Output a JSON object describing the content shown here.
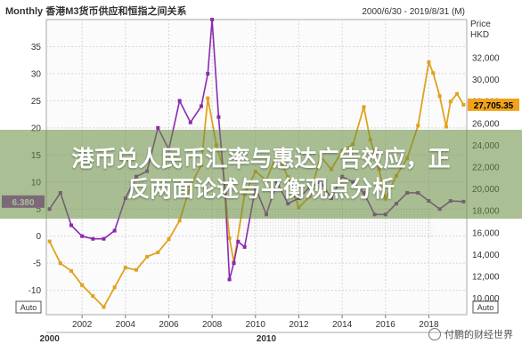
{
  "chart_data": {
    "type": "line",
    "title": "Monthly 香港M3货币供应和恒指之间关系",
    "date_range": "2000/6/30 - 2019/8/31 (M)",
    "left_axis": {
      "ticks": [
        35,
        30,
        25,
        20,
        15,
        10,
        5,
        0,
        -5,
        -10
      ],
      "ylim": [
        -14.5,
        40
      ],
      "current_label": "6.380"
    },
    "right_axis": {
      "unit_top": "Price",
      "unit_bottom": "HKD",
      "ticks": [
        32000,
        30000,
        28000,
        26000,
        24000,
        22000,
        20000,
        18000,
        16000,
        14000,
        12000,
        10000
      ],
      "ticks_text": [
        "32,000",
        "30,000",
        "28,000",
        "26,000",
        "24,000",
        "22,000",
        "20,000",
        "18,000",
        "16,000",
        "14,000",
        "12,000",
        "10,000"
      ],
      "ylim": [
        8500,
        35500
      ],
      "current_label": "27,705.35"
    },
    "x_ticks": [
      "2002",
      "2004",
      "2006",
      "2008",
      "2010",
      "2012",
      "2014",
      "2016",
      "2018"
    ],
    "x_groups": [
      "2000",
      "2010"
    ],
    "auto_label": "Auto",
    "grid": true,
    "series": [
      {
        "color": "#e0a21e",
        "x": [
          2000.5,
          2001.0,
          2001.5,
          2002.0,
          2002.5,
          2003.0,
          2003.5,
          2004.0,
          2004.5,
          2005.0,
          2005.5,
          2006.0,
          2006.5,
          2007.0,
          2007.5,
          2007.8,
          2008.2,
          2008.5,
          2008.8,
          2009.0,
          2009.5,
          2010.0,
          2010.5,
          2011.0,
          2011.5,
          2012.0,
          2012.5,
          2013.0,
          2013.5,
          2014.0,
          2014.5,
          2015.0,
          2015.3,
          2015.7,
          2016.0,
          2016.5,
          2017.0,
          2017.5,
          2018.0,
          2018.2,
          2018.5,
          2018.8,
          2019.0,
          2019.3,
          2019.6
        ],
        "y": [
          15200,
          13200,
          12500,
          11200,
          10200,
          9200,
          11000,
          12800,
          12600,
          13800,
          14200,
          15400,
          17100,
          20300,
          22200,
          28300,
          24000,
          22000,
          15500,
          13300,
          19500,
          21600,
          20800,
          23200,
          21100,
          18300,
          19300,
          23000,
          21800,
          23500,
          24100,
          27500,
          24500,
          21800,
          19100,
          21200,
          22800,
          25800,
          31600,
          30600,
          28500,
          25700,
          28000,
          28700,
          27705
        ]
      },
      {
        "color": "#8a2ab0",
        "x": [
          2000.5,
          2001.0,
          2001.5,
          2002.0,
          2002.5,
          2003.0,
          2003.5,
          2004.0,
          2004.5,
          2005.0,
          2005.5,
          2006.0,
          2006.5,
          2007.0,
          2007.5,
          2007.8,
          2008.0,
          2008.3,
          2008.6,
          2008.8,
          2009.0,
          2009.2,
          2009.5,
          2010.0,
          2010.5,
          2011.0,
          2011.5,
          2012.0,
          2012.5,
          2013.0,
          2013.5,
          2014.0,
          2014.5,
          2015.0,
          2015.5,
          2016.0,
          2016.5,
          2017.0,
          2017.5,
          2018.0,
          2018.5,
          2019.0,
          2019.6
        ],
        "y": [
          5,
          8,
          2,
          0,
          -0.5,
          -0.5,
          1,
          7,
          11,
          12,
          20,
          16,
          25,
          21,
          24,
          30,
          40,
          22,
          8,
          -8,
          -5,
          -1,
          -2,
          9,
          4,
          10,
          6,
          7,
          9,
          10,
          7,
          11,
          10,
          8,
          4,
          4,
          6,
          8,
          8,
          6.5,
          5,
          6.5,
          6.38
        ]
      }
    ]
  },
  "banner": {
    "line1": "港币兑人民币汇率与惠达广告效应，正",
    "line2": "反两面论述与平衡观点分析"
  },
  "watermark": {
    "text": "付鹏的财经世界",
    "icon": "wechat-icon"
  }
}
